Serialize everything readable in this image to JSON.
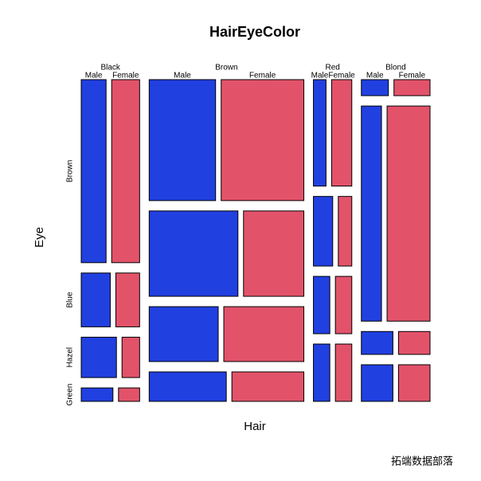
{
  "chart_data": {
    "type": "mosaic",
    "title": "HairEyeColor",
    "x_label": "Hair",
    "y_label": "Eye",
    "hair": [
      "Black",
      "Brown",
      "Red",
      "Blond"
    ],
    "eye": [
      "Brown",
      "Blue",
      "Hazel",
      "Green"
    ],
    "series": [
      {
        "name": "Male",
        "color": "#2140e0",
        "values": [
          [
            32,
            11,
            10,
            3
          ],
          [
            53,
            50,
            25,
            15
          ],
          [
            10,
            10,
            7,
            7
          ],
          [
            3,
            30,
            5,
            8
          ]
        ]
      },
      {
        "name": "Female",
        "color": "#e2536a",
        "values": [
          [
            36,
            9,
            5,
            2
          ],
          [
            66,
            34,
            29,
            14
          ],
          [
            16,
            7,
            7,
            7
          ],
          [
            4,
            64,
            5,
            8
          ]
        ]
      }
    ],
    "watermark": "拓端数据部落"
  }
}
